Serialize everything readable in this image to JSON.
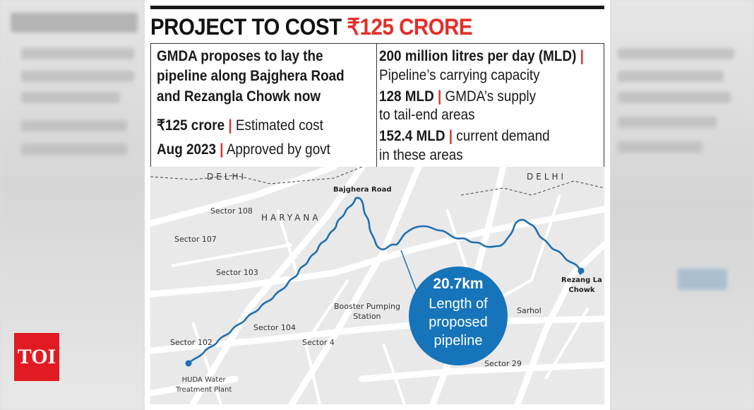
{
  "title": {
    "main": "PROJECT TO COST ",
    "accent": "₹125 CRORE"
  },
  "left_col": {
    "headline": [
      "GMDA proposes to lay the",
      "pipeline along Bajghera Road",
      "and Rezangla Chowk now"
    ],
    "facts": [
      {
        "value": "₹125 crore",
        "sep": "|",
        "label": "Estimated cost"
      },
      {
        "value": "Aug 2023",
        "sep": "|",
        "label": "Approved by govt"
      }
    ]
  },
  "right_col": {
    "facts": [
      {
        "value": "200 million litres per day (MLD)",
        "sep": "|",
        "label_lines": [
          "Pipeline’s carrying capacity"
        ]
      },
      {
        "value": "128 MLD",
        "sep": "|",
        "label_first": "GMDA’s supply",
        "label_lines": [
          "to tail-end areas"
        ]
      },
      {
        "value": "152.4 MLD",
        "sep": "|",
        "label_first": "current demand",
        "label_lines": [
          "in these areas"
        ]
      }
    ]
  },
  "map": {
    "labels": {
      "delhi_left": "DELHI",
      "delhi_right": "DELHI",
      "haryana": "HARYANA",
      "bajghera": "Bajghera Road",
      "sector108": "Sector 108",
      "sector107": "Sector 107",
      "sector103": "Sector 103",
      "sector104": "Sector 104",
      "sector102": "Sector 102",
      "sector4": "Sector 4",
      "sector29": "Sector 29",
      "booster": [
        "Booster Pumping",
        "Station"
      ],
      "sarhol": "Sarhol",
      "rezang": [
        "Rezang La",
        "Chowk"
      ],
      "huda": [
        "HUDA Water",
        "Treatment Plant"
      ]
    },
    "callout": {
      "value": "20.7km",
      "lines": [
        "Length of",
        "proposed",
        "pipeline"
      ]
    },
    "colors": {
      "pipeline": "#1f6fb0",
      "callout": "#1674ba",
      "accent": "#e52e27"
    }
  },
  "logo": {
    "text": "TOI",
    "color": "#e21b22"
  }
}
